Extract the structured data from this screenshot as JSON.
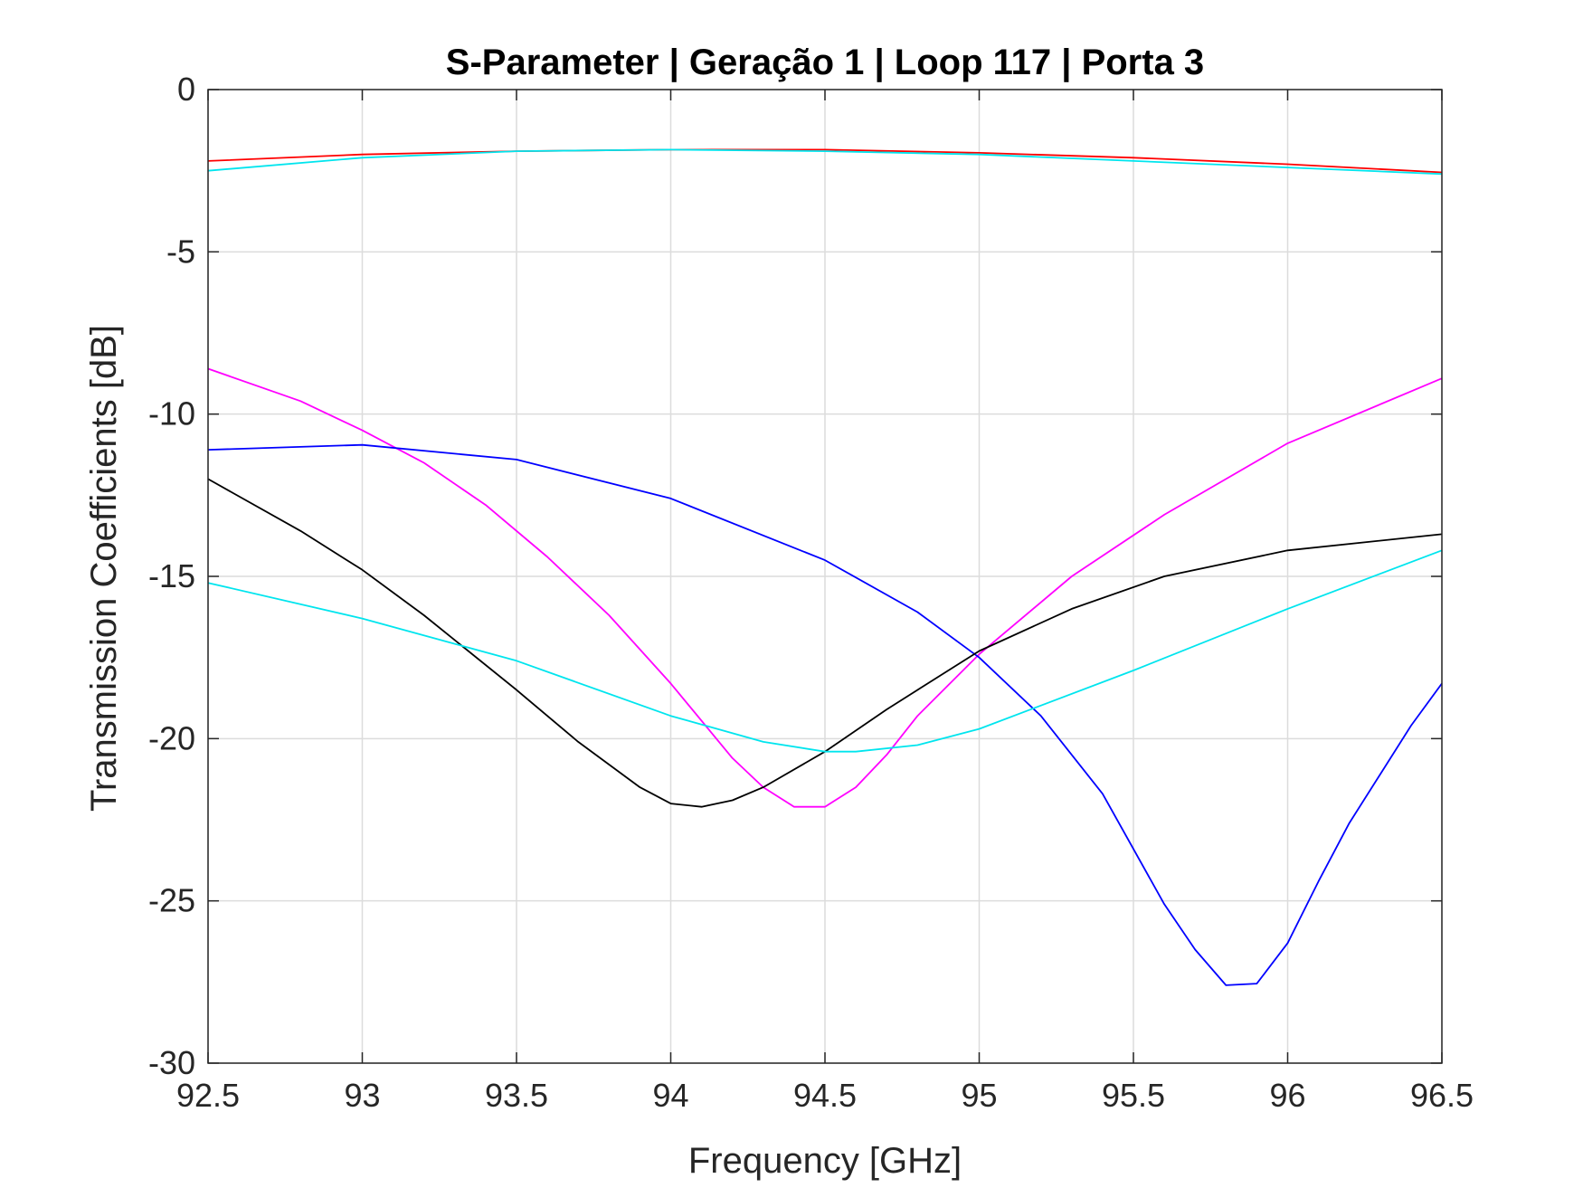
{
  "chart_data": {
    "type": "line",
    "title": "S-Parameter  |  Geração 1  |  Loop 117  |  Porta 3",
    "xlabel": "Frequency [GHz]",
    "ylabel": "Transmission Coefficients [dB]",
    "xlim": [
      92.5,
      96.5
    ],
    "ylim": [
      -30,
      0
    ],
    "xticks": [
      92.5,
      93,
      93.5,
      94,
      94.5,
      95,
      95.5,
      96,
      96.5
    ],
    "xtick_labels": [
      "92.5",
      "93",
      "93.5",
      "94",
      "94.5",
      "95",
      "95.5",
      "96",
      "96.5"
    ],
    "yticks": [
      0,
      -5,
      -10,
      -15,
      -20,
      -25,
      -30
    ],
    "ytick_labels": [
      "0",
      "-5",
      "-10",
      "-15",
      "-20",
      "-25",
      "-30"
    ],
    "grid": true,
    "series": [
      {
        "color": "#ff0000",
        "x": [
          92.5,
          93.0,
          93.5,
          94.0,
          94.5,
          95.0,
          95.5,
          96.0,
          96.5
        ],
        "values": [
          -2.2,
          -2.0,
          -1.9,
          -1.85,
          -1.85,
          -1.95,
          -2.1,
          -2.3,
          -2.55
        ]
      },
      {
        "color": "#00e5ee",
        "x": [
          92.5,
          93.0,
          93.5,
          94.0,
          94.5,
          95.0,
          95.5,
          96.0,
          96.5
        ],
        "values": [
          -2.5,
          -2.1,
          -1.9,
          -1.85,
          -1.9,
          -2.0,
          -2.2,
          -2.4,
          -2.6
        ]
      },
      {
        "color": "#ff00ff",
        "x": [
          92.5,
          92.8,
          93.0,
          93.2,
          93.4,
          93.6,
          93.8,
          94.0,
          94.2,
          94.3,
          94.4,
          94.5,
          94.6,
          94.7,
          94.8,
          95.0,
          95.3,
          95.6,
          96.0,
          96.5
        ],
        "values": [
          -8.6,
          -9.6,
          -10.5,
          -11.5,
          -12.8,
          -14.4,
          -16.2,
          -18.3,
          -20.6,
          -21.5,
          -22.1,
          -22.1,
          -21.5,
          -20.5,
          -19.3,
          -17.4,
          -15.0,
          -13.1,
          -10.9,
          -8.9
        ]
      },
      {
        "color": "#0000ff",
        "x": [
          92.5,
          93.0,
          93.5,
          94.0,
          94.5,
          94.8,
          95.0,
          95.2,
          95.4,
          95.6,
          95.7,
          95.8,
          95.9,
          96.0,
          96.1,
          96.2,
          96.4,
          96.5
        ],
        "values": [
          -11.1,
          -10.95,
          -11.4,
          -12.6,
          -14.5,
          -16.1,
          -17.5,
          -19.3,
          -21.7,
          -25.1,
          -26.5,
          -27.6,
          -27.55,
          -26.3,
          -24.4,
          -22.6,
          -19.6,
          -18.3
        ]
      },
      {
        "color": "#000000",
        "x": [
          92.5,
          92.8,
          93.0,
          93.2,
          93.5,
          93.7,
          93.9,
          94.0,
          94.1,
          94.2,
          94.3,
          94.5,
          94.7,
          94.9,
          95.0,
          95.3,
          95.6,
          96.0,
          96.5
        ],
        "values": [
          -12.0,
          -13.6,
          -14.8,
          -16.2,
          -18.5,
          -20.1,
          -21.5,
          -22.0,
          -22.1,
          -21.9,
          -21.5,
          -20.4,
          -19.1,
          -17.9,
          -17.3,
          -16.0,
          -15.0,
          -14.2,
          -13.7
        ]
      },
      {
        "color": "#00e5ee",
        "x": [
          92.5,
          93.0,
          93.5,
          94.0,
          94.3,
          94.5,
          94.6,
          94.8,
          95.0,
          95.5,
          96.0,
          96.5
        ],
        "values": [
          -15.2,
          -16.3,
          -17.6,
          -19.3,
          -20.1,
          -20.4,
          -20.4,
          -20.2,
          -19.7,
          -17.9,
          -16.0,
          -14.2
        ]
      }
    ]
  }
}
